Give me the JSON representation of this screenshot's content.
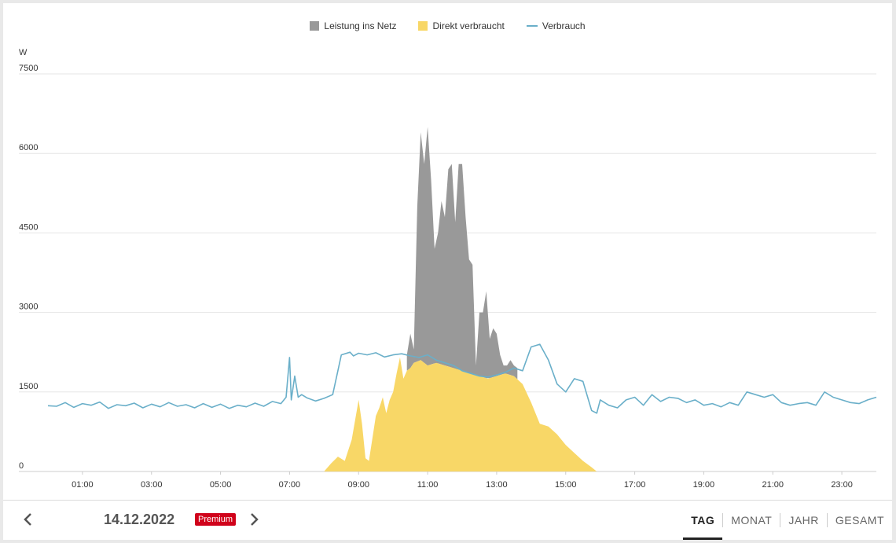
{
  "chart_data": {
    "type": "area",
    "unit_label": "W",
    "legend": [
      {
        "name": "Leistung ins Netz",
        "color": "#999999",
        "shape": "box"
      },
      {
        "name": "Direkt verbraucht",
        "color": "#f8d767",
        "shape": "box"
      },
      {
        "name": "Verbrauch",
        "color": "#6aafc9",
        "shape": "line"
      }
    ],
    "ylim": [
      0,
      7500
    ],
    "y_ticks": [
      0,
      1500,
      3000,
      4500,
      6000,
      7500
    ],
    "xlim": [
      0,
      24
    ],
    "x_ticks": [
      "01:00",
      "03:00",
      "05:00",
      "07:00",
      "09:00",
      "11:00",
      "13:00",
      "15:00",
      "17:00",
      "19:00",
      "21:00",
      "23:00"
    ],
    "grid": "horizontal",
    "legend_position": "top-center",
    "series": [
      {
        "name": "Verbrauch",
        "type": "line",
        "x": [
          0.0,
          0.25,
          0.5,
          0.75,
          1.0,
          1.25,
          1.5,
          1.75,
          2.0,
          2.25,
          2.5,
          2.75,
          3.0,
          3.25,
          3.5,
          3.75,
          4.0,
          4.25,
          4.5,
          4.75,
          5.0,
          5.25,
          5.5,
          5.75,
          6.0,
          6.25,
          6.5,
          6.75,
          6.9,
          7.0,
          7.05,
          7.15,
          7.25,
          7.35,
          7.5,
          7.75,
          8.0,
          8.25,
          8.5,
          8.75,
          8.85,
          9.0,
          9.25,
          9.5,
          9.75,
          10.0,
          10.25,
          10.5,
          10.75,
          11.0,
          11.25,
          11.5,
          11.75,
          12.0,
          12.25,
          12.5,
          12.75,
          13.0,
          13.25,
          13.5,
          13.75,
          14.0,
          14.25,
          14.5,
          14.75,
          15.0,
          15.25,
          15.5,
          15.75,
          15.9,
          16.0,
          16.25,
          16.5,
          16.75,
          17.0,
          17.25,
          17.5,
          17.75,
          18.0,
          18.25,
          18.5,
          18.75,
          19.0,
          19.25,
          19.5,
          19.75,
          20.0,
          20.25,
          20.5,
          20.75,
          21.0,
          21.25,
          21.5,
          21.75,
          22.0,
          22.25,
          22.5,
          22.75,
          23.0,
          23.25,
          23.5,
          23.75,
          24.0
        ],
        "values": [
          1240,
          1230,
          1300,
          1210,
          1280,
          1250,
          1310,
          1190,
          1260,
          1240,
          1290,
          1200,
          1270,
          1220,
          1300,
          1230,
          1260,
          1200,
          1280,
          1210,
          1270,
          1190,
          1250,
          1220,
          1290,
          1230,
          1320,
          1280,
          1400,
          2150,
          1350,
          1800,
          1400,
          1450,
          1390,
          1330,
          1380,
          1450,
          2200,
          2250,
          2180,
          2230,
          2200,
          2240,
          2160,
          2200,
          2220,
          2180,
          2150,
          2200,
          2100,
          2050,
          2000,
          1900,
          1850,
          1800,
          1780,
          1820,
          1870,
          1950,
          1900,
          2350,
          2400,
          2100,
          1650,
          1500,
          1750,
          1700,
          1150,
          1100,
          1350,
          1250,
          1200,
          1350,
          1400,
          1250,
          1450,
          1320,
          1400,
          1380,
          1300,
          1350,
          1250,
          1280,
          1220,
          1300,
          1250,
          1500,
          1450,
          1400,
          1450,
          1300,
          1250,
          1280,
          1300,
          1250,
          1500,
          1400,
          1350,
          1300,
          1280,
          1350,
          1400
        ]
      },
      {
        "name": "Direkt verbraucht",
        "type": "area",
        "x": [
          8.0,
          8.2,
          8.4,
          8.6,
          8.8,
          9.0,
          9.1,
          9.2,
          9.3,
          9.5,
          9.6,
          9.7,
          9.8,
          9.9,
          10.0,
          10.1,
          10.2,
          10.3,
          10.4,
          10.5,
          10.6,
          10.8,
          11.0,
          11.25,
          11.5,
          11.75,
          12.0,
          12.25,
          12.5,
          12.75,
          13.0,
          13.25,
          13.5,
          13.75,
          14.0,
          14.25,
          14.5,
          14.75,
          15.0,
          15.25,
          15.5,
          15.75,
          15.9
        ],
        "values": [
          0,
          150,
          280,
          200,
          600,
          1350,
          900,
          250,
          200,
          1050,
          1200,
          1400,
          1100,
          1350,
          1500,
          1850,
          2150,
          1750,
          1900,
          1950,
          2050,
          2100,
          2000,
          2050,
          2000,
          1950,
          1900,
          1850,
          1800,
          1750,
          1800,
          1850,
          1800,
          1650,
          1300,
          900,
          850,
          700,
          500,
          350,
          200,
          80,
          0
        ]
      },
      {
        "name": "Leistung ins Netz",
        "type": "stacked_area_top",
        "x": [
          10.4,
          10.5,
          10.6,
          10.7,
          10.8,
          10.9,
          11.0,
          11.1,
          11.2,
          11.3,
          11.4,
          11.5,
          11.6,
          11.7,
          11.8,
          11.9,
          12.0,
          12.1,
          12.2,
          12.3,
          12.4,
          12.5,
          12.6,
          12.7,
          12.8,
          12.9,
          13.0,
          13.1,
          13.2,
          13.3,
          13.4,
          13.5,
          13.6
        ],
        "values": [
          2200,
          2600,
          2300,
          5000,
          6400,
          5800,
          6500,
          5500,
          4200,
          4500,
          5100,
          4800,
          5700,
          5800,
          4700,
          5800,
          5800,
          4800,
          4000,
          3900,
          2000,
          3000,
          3000,
          3400,
          2500,
          2700,
          2600,
          2200,
          2000,
          2000,
          2100,
          2000,
          1950
        ]
      }
    ]
  },
  "footer": {
    "date": "14.12.2022",
    "badge": "Premium",
    "tabs": [
      "TAG",
      "MONAT",
      "JAHR",
      "GESAMT"
    ],
    "active_tab": "TAG"
  }
}
